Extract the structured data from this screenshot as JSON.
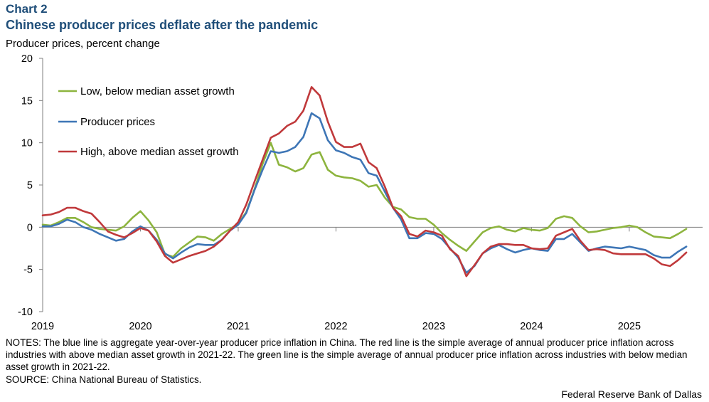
{
  "header": {
    "chart_label": "Chart 2",
    "title": "Chinese producer prices deflate after the pandemic",
    "y_axis_label": "Producer prices, percent change"
  },
  "footer": {
    "notes": "NOTES: The blue line is aggregate year-over-year producer price inflation in China. The red line is the simple average of annual producer price inflation across industries with above median asset growth in 2021-22. The green line is the simple average of annual producer price inflation across industries with below median asset growth in 2021-22.",
    "source": "SOURCE: China National Bureau of Statistics.",
    "credit": "Federal Reserve Bank of Dallas"
  },
  "colors": {
    "low": "#8db43e",
    "aggregate": "#3e76b6",
    "high": "#c0393b",
    "axis": "#7f7f7f"
  },
  "chart_data": {
    "type": "line",
    "title": "Chinese producer prices deflate after the pandemic",
    "ylabel": "Producer prices, percent change",
    "xlabel": "",
    "x_start": "2019-01",
    "x_step": "month",
    "xlim": [
      2019.0,
      2025.75
    ],
    "ylim": [
      -10,
      20
    ],
    "yticks": [
      -10,
      -5,
      0,
      5,
      10,
      15,
      20
    ],
    "xticks": [
      2019,
      2020,
      2021,
      2022,
      2023,
      2024,
      2025
    ],
    "xtick_labels": [
      "2019",
      "2020",
      "2021",
      "2022",
      "2023",
      "2024",
      "2025"
    ],
    "grid": false,
    "legend_position": "top-left",
    "series": [
      {
        "key": "low",
        "name": "Low, below median asset growth",
        "values": [
          0.3,
          0.2,
          0.6,
          1.1,
          1.1,
          0.6,
          0.0,
          -0.2,
          -0.3,
          -0.4,
          0.1,
          1.1,
          1.9,
          0.8,
          -0.6,
          -3.2,
          -3.5,
          -2.5,
          -1.8,
          -1.1,
          -1.2,
          -1.6,
          -0.8,
          -0.2,
          0.4,
          1.8,
          4.5,
          7.5,
          10.0,
          7.4,
          7.1,
          6.6,
          7.0,
          8.6,
          8.9,
          6.8,
          6.1,
          5.9,
          5.8,
          5.5,
          4.8,
          5.0,
          3.5,
          2.4,
          2.1,
          1.2,
          1.0,
          1.0,
          0.3,
          -0.7,
          -1.5,
          -2.2,
          -2.8,
          -1.7,
          -0.6,
          -0.1,
          0.1,
          -0.3,
          -0.5,
          -0.1,
          -0.3,
          -0.4,
          -0.1,
          1.0,
          1.3,
          1.1,
          0.1,
          -0.6,
          -0.5,
          -0.3,
          -0.1,
          0.0,
          0.2,
          0.0,
          -0.6,
          -1.1,
          -1.2,
          -1.3,
          -0.8,
          -0.2
        ]
      },
      {
        "key": "aggregate",
        "name": "Producer prices",
        "values": [
          0.1,
          0.1,
          0.4,
          0.9,
          0.6,
          0.0,
          -0.3,
          -0.8,
          -1.2,
          -1.6,
          -1.4,
          -0.5,
          0.1,
          -0.4,
          -1.5,
          -3.1,
          -3.7,
          -3.0,
          -2.4,
          -2.0,
          -2.1,
          -2.1,
          -1.5,
          -0.4,
          0.3,
          1.7,
          4.4,
          6.8,
          9.0,
          8.8,
          9.0,
          9.5,
          10.7,
          13.5,
          12.9,
          10.3,
          9.1,
          8.8,
          8.3,
          8.0,
          6.4,
          6.1,
          4.2,
          2.3,
          0.9,
          -1.3,
          -1.3,
          -0.7,
          -0.8,
          -1.4,
          -2.5,
          -3.6,
          -5.4,
          -4.6,
          -3.1,
          -2.5,
          -2.1,
          -2.6,
          -3.0,
          -2.7,
          -2.5,
          -2.7,
          -2.8,
          -1.4,
          -1.4,
          -0.8,
          -1.8,
          -2.8,
          -2.5,
          -2.3,
          -2.4,
          -2.5,
          -2.3,
          -2.5,
          -2.7,
          -3.3,
          -3.6,
          -3.6,
          -2.9,
          -2.3
        ]
      },
      {
        "key": "high",
        "name": "High, above median asset growth",
        "values": [
          1.4,
          1.5,
          1.8,
          2.3,
          2.3,
          1.9,
          1.6,
          0.6,
          -0.5,
          -0.9,
          -1.2,
          -0.7,
          -0.1,
          -0.4,
          -1.7,
          -3.4,
          -4.2,
          -3.8,
          -3.4,
          -3.1,
          -2.8,
          -2.3,
          -1.5,
          -0.4,
          0.6,
          2.7,
          5.4,
          8.0,
          10.6,
          11.1,
          12.0,
          12.5,
          13.8,
          16.6,
          15.6,
          12.5,
          10.1,
          9.5,
          9.5,
          9.9,
          7.7,
          7.0,
          4.8,
          2.3,
          1.3,
          -0.8,
          -1.1,
          -0.4,
          -0.6,
          -1.0,
          -2.6,
          -3.4,
          -5.8,
          -4.5,
          -3.1,
          -2.3,
          -2.0,
          -2.0,
          -2.1,
          -2.1,
          -2.5,
          -2.6,
          -2.5,
          -1.0,
          -0.6,
          -0.2,
          -1.6,
          -2.7,
          -2.6,
          -2.7,
          -3.1,
          -3.2,
          -3.2,
          -3.2,
          -3.2,
          -3.7,
          -4.4,
          -4.6,
          -3.9,
          -3.0
        ]
      }
    ]
  }
}
